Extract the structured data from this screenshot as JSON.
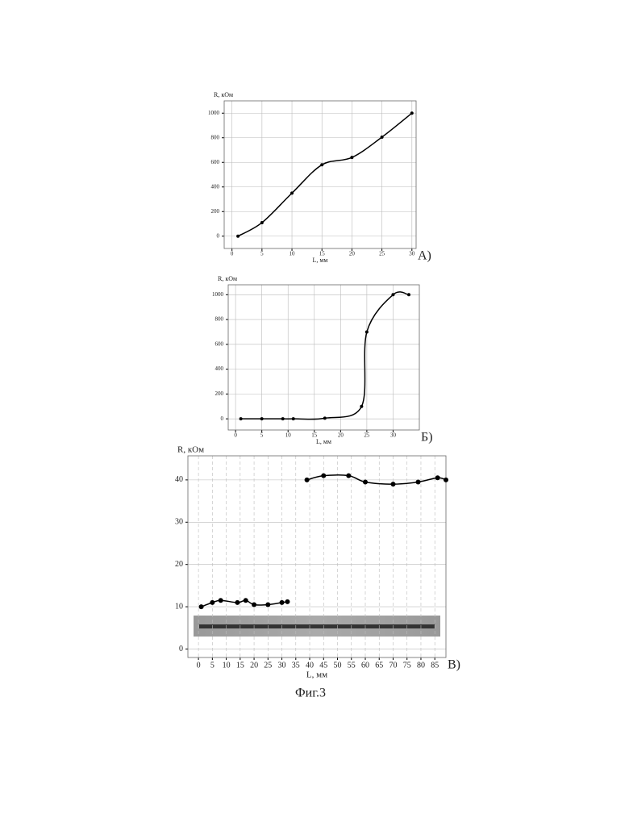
{
  "chart_data": [
    {
      "type": "scatter",
      "ylabel": "R, кОм",
      "xlabel": "L, мм",
      "panel_label": "А)",
      "xlim": [
        -1.3,
        30.7
      ],
      "xticks": [
        0,
        5,
        10,
        15,
        20,
        25,
        30
      ],
      "ylim": [
        -100,
        1100
      ],
      "yticks": [
        0,
        200,
        400,
        600,
        800,
        1000
      ],
      "grid": true,
      "series": [
        {
          "color": "#000000",
          "x": [
            1,
            5,
            10,
            15,
            20,
            25,
            30
          ],
          "values": [
            0,
            110,
            350,
            580,
            640,
            805,
            1000
          ]
        }
      ]
    },
    {
      "type": "scatter",
      "ylabel": "R, кОм",
      "xlabel": "L, мм",
      "panel_label": "Б)",
      "xlim": [
        -1.4,
        35
      ],
      "xticks": [
        0,
        5,
        10,
        15,
        20,
        25,
        30
      ],
      "ylim": [
        -90,
        1080
      ],
      "yticks": [
        0,
        200,
        400,
        600,
        800,
        1000
      ],
      "grid": true,
      "series": [
        {
          "color": "#000000",
          "x": [
            1,
            5,
            9,
            11,
            17,
            24,
            25,
            30,
            33
          ],
          "values": [
            0,
            0,
            0,
            0,
            5,
            100,
            700,
            1000,
            1000
          ]
        }
      ]
    },
    {
      "type": "scatter",
      "ylabel": "R, кОм",
      "xlabel": "L, мм",
      "panel_label": "В)",
      "xlim": [
        -3.8,
        89
      ],
      "xticks": [
        0,
        5,
        10,
        15,
        20,
        25,
        30,
        35,
        40,
        45,
        50,
        55,
        60,
        65,
        70,
        75,
        80,
        85
      ],
      "ylim": [
        -2,
        45.7
      ],
      "yticks": [
        0,
        10,
        20,
        30,
        40
      ],
      "grid": true,
      "series": [
        {
          "color": "#000000",
          "x": [
            1,
            5,
            8,
            14,
            17,
            20,
            25,
            30,
            32
          ],
          "values": [
            10,
            11,
            11.5,
            11,
            11.5,
            10.5,
            10.5,
            11,
            11.2
          ]
        },
        {
          "color": "#000000",
          "x": [
            39,
            45,
            54,
            60,
            70,
            79,
            86,
            89
          ],
          "values": [
            40,
            41,
            41,
            39.5,
            39,
            39.5,
            40.5,
            40
          ]
        }
      ]
    }
  ],
  "caption": "Фиг.3"
}
